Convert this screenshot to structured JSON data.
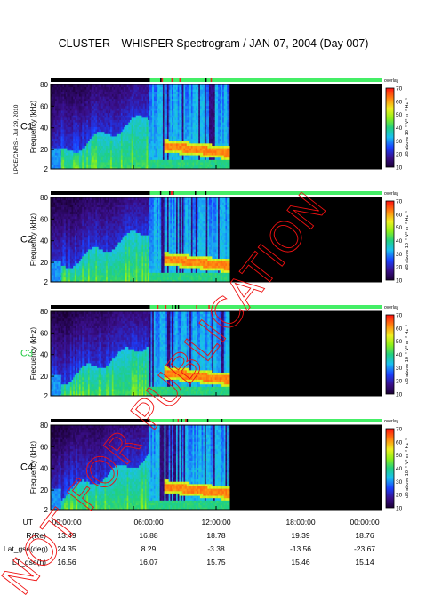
{
  "title": "CLUSTER—WHISPER Spectrogram / JAN 07, 2004 (Day 007)",
  "side_label": "LPCE/CNRS - Jul 29, 2010",
  "watermark": "NOT FOR PUBLICATION",
  "colors": {
    "status_black": "#000000",
    "status_green": "#44ee66",
    "status_red": "#ee2222",
    "no_data": "#000000",
    "c3_label": "#22cc44",
    "watermark": "#ee1111"
  },
  "colorbar": {
    "label": "dB above 10⁻⁸ V² m⁻² Hz⁻¹",
    "ticks": [
      "70",
      "60",
      "50",
      "40",
      "30",
      "20",
      "10"
    ],
    "mode": "overlay"
  },
  "footer": {
    "labels": [
      "UT",
      "R(Re)",
      "Lat_gse(deg)",
      "LT_gse(h)"
    ],
    "rows": [
      [
        "00:00:00",
        "06:00:00",
        "12:00:00",
        "18:00:00",
        "00:00:00"
      ],
      [
        "13.49",
        "16.88",
        "18.78",
        "19.39",
        "18.76"
      ],
      [
        "24.35",
        "8.29",
        "-3.38",
        "-13.56",
        "-23.67"
      ],
      [
        "16.56",
        "16.07",
        "15.75",
        "15.46",
        "15.14"
      ]
    ]
  },
  "chart_data": {
    "type": "heatmap",
    "title": "CLUSTER—WHISPER Spectrogram / JAN 07, 2004 (Day 007)",
    "xlabel": "UT",
    "ylabel": "Frequency (kHz)",
    "ylim": [
      2,
      80
    ],
    "x_ticks": [
      "00:00:00",
      "06:00:00",
      "12:00:00",
      "18:00:00",
      "00:00:00"
    ],
    "y_ticks": [
      "80",
      "60",
      "40",
      "20",
      "2"
    ],
    "color_scale": {
      "min": 10,
      "max": 70,
      "unit": "dB above 10⁻⁸ V² m⁻² Hz⁻¹"
    },
    "data_end_hour": 13,
    "panels": [
      {
        "name": "C1",
        "seed": 11
      },
      {
        "name": "C2",
        "seed": 23
      },
      {
        "name": "C3",
        "seed": 37
      },
      {
        "name": "C4",
        "seed": 51
      }
    ]
  }
}
